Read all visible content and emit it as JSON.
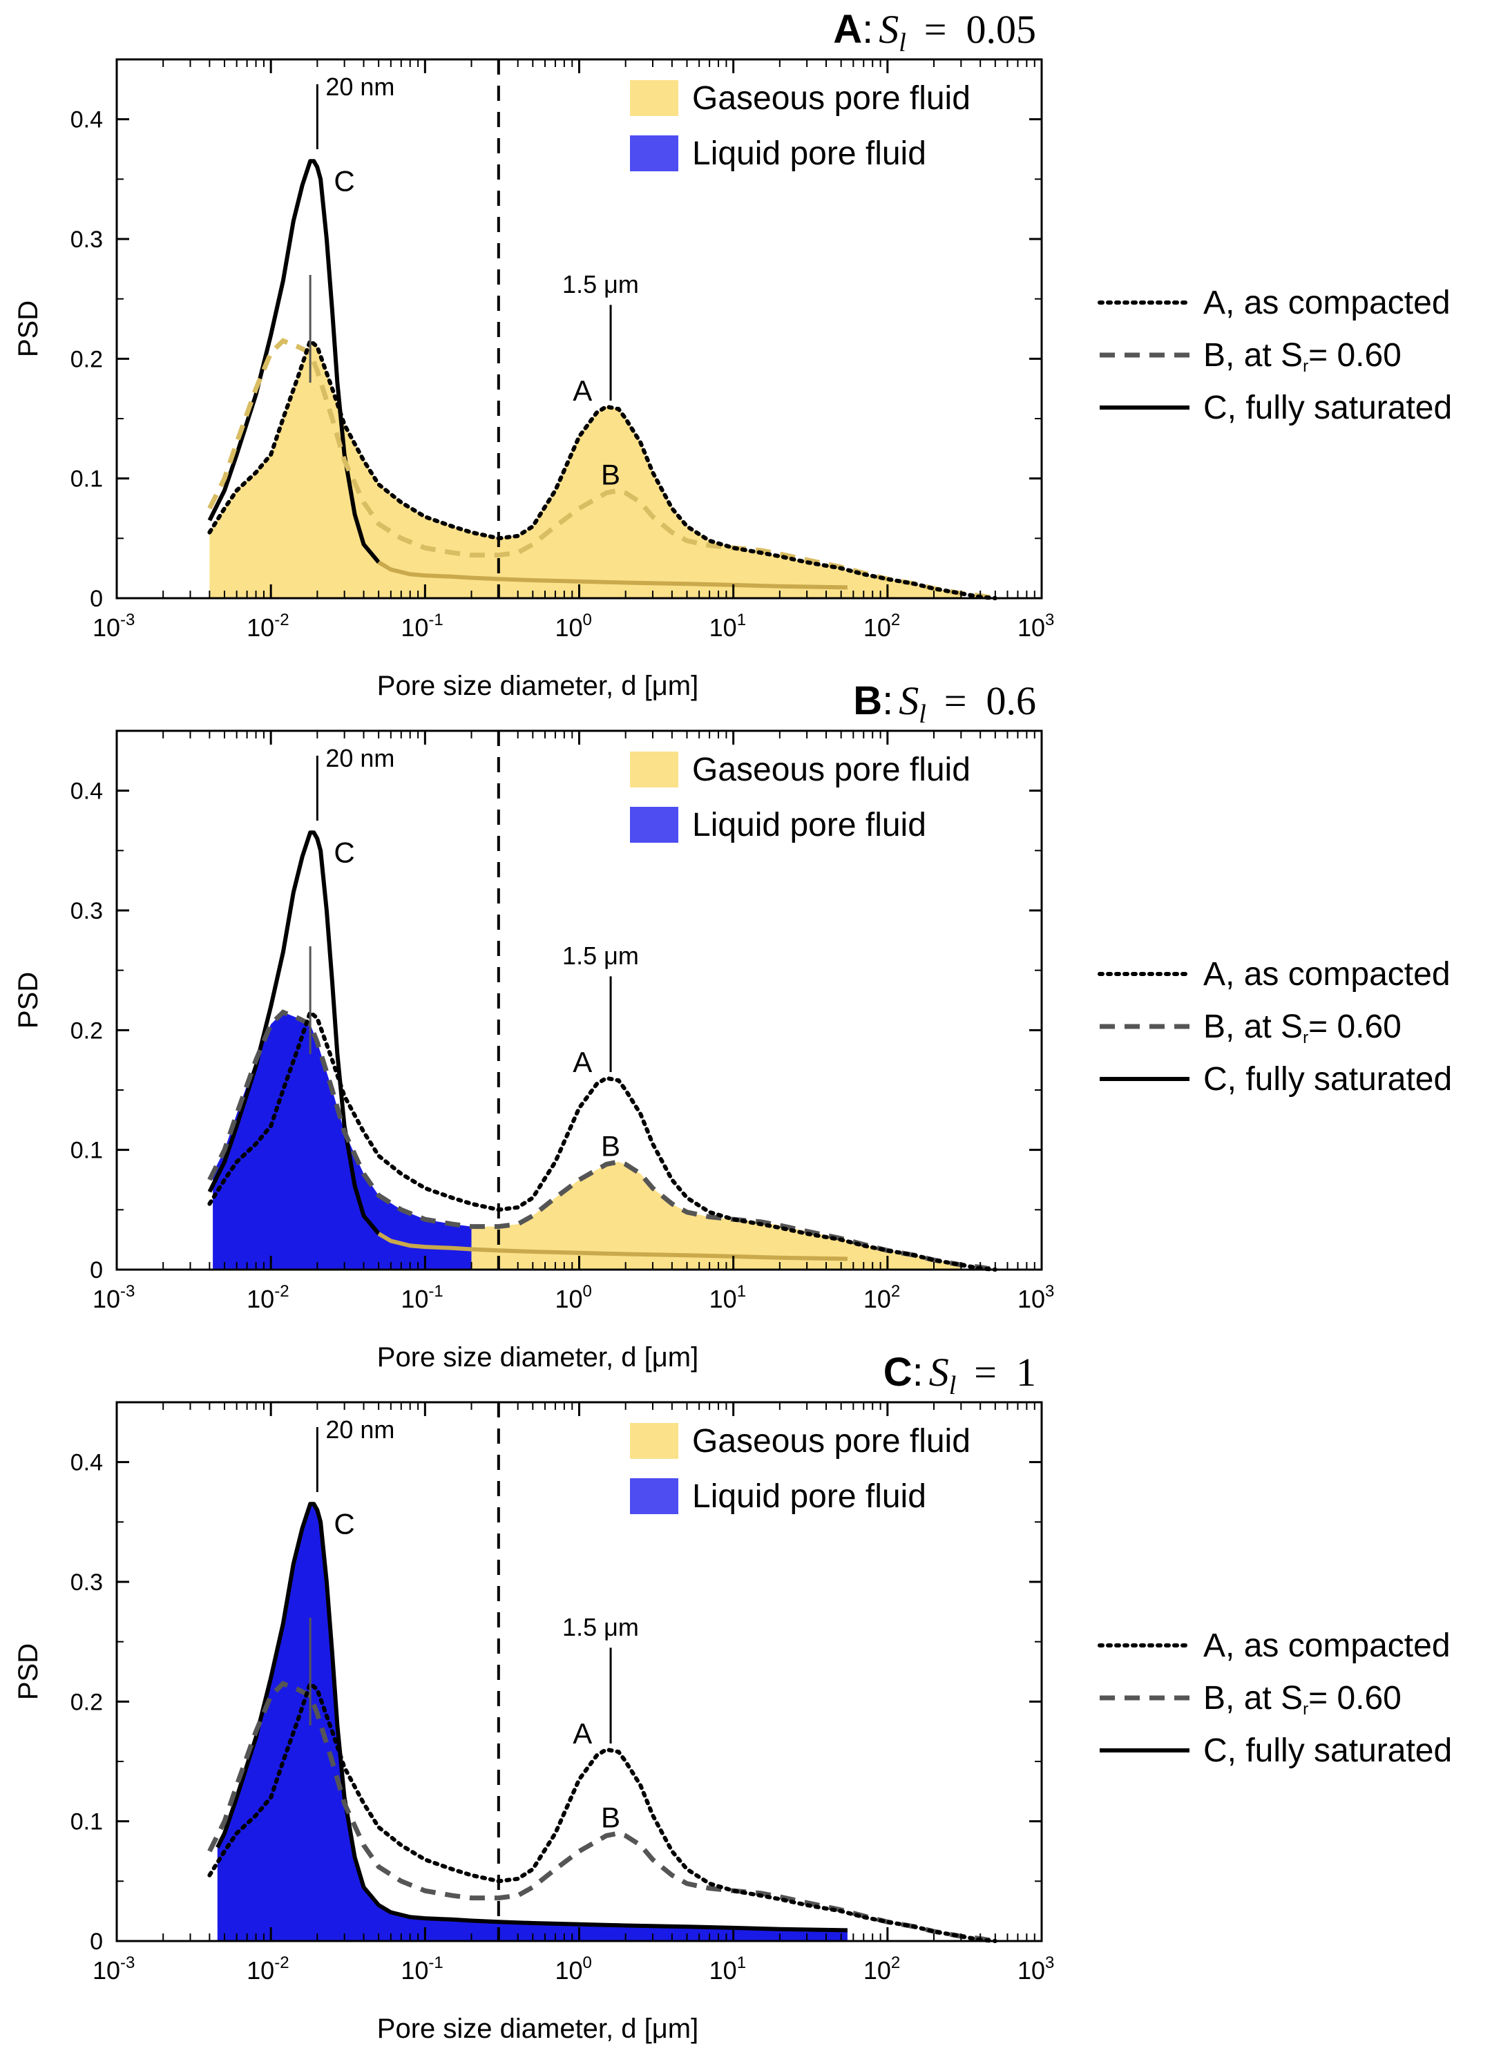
{
  "colors": {
    "gaseous": "#fbe18a",
    "gaseous_edge": "#d9b24a",
    "liquid": "#1a1ae6",
    "legend_liquid": "#4d4df2",
    "curve_a": "#000000",
    "curve_b": "#555555",
    "curve_c": "#000000",
    "curve_c_muted": "#c9a94c",
    "divider": "#000000"
  },
  "shared": {
    "xlabel": "Pore size diameter, d [μm]",
    "ylabel": "PSD",
    "xlim": [
      0.001,
      1000
    ],
    "ylim": [
      0,
      0.45
    ],
    "x_scale": "log",
    "yticks": [
      0,
      0.1,
      0.2,
      0.3,
      0.4
    ],
    "ytick_labels": [
      "0",
      "0.1",
      "0.2",
      "0.3",
      "0.4"
    ],
    "xtick_base": "10",
    "xtick_exponents": [
      "-3",
      "-2",
      "-1",
      "0",
      "1",
      "2",
      "3"
    ],
    "legend_fill": [
      "Gaseous pore fluid",
      "Liquid pore fluid"
    ],
    "legend_lines": [
      "A, as compacted",
      "B, at S",
      "r",
      "= 0.60",
      "C, fully saturated"
    ],
    "annotations": {
      "peak_small": "20 nm",
      "peak_large": "1.5 μm",
      "label_a": "A",
      "label_b": "B",
      "label_c": "C"
    },
    "divider_x": 0.3
  },
  "panels": [
    {
      "title_bold": "A",
      "title_sep": ":",
      "title_var": "S",
      "title_sub": "l",
      "title_eq": "=",
      "title_val": "0.05"
    },
    {
      "title_bold": "B",
      "title_sep": ":",
      "title_var": "S",
      "title_sub": "l",
      "title_eq": "=",
      "title_val": "0.6"
    },
    {
      "title_bold": "C",
      "title_sep": ":",
      "title_var": "S",
      "title_sub": "l",
      "title_eq": "=",
      "title_val": "1"
    }
  ],
  "chart_data": {
    "type": "line",
    "x_scale": "log",
    "xlim": [
      0.001,
      1000
    ],
    "ylim": [
      0,
      0.45
    ],
    "xlabel": "Pore size diameter, d [μm]",
    "ylabel": "PSD",
    "series": [
      {
        "name": "A, as compacted",
        "style": "dotted",
        "x": [
          0.004,
          0.005,
          0.006,
          0.008,
          0.01,
          0.012,
          0.015,
          0.018,
          0.02,
          0.025,
          0.03,
          0.04,
          0.05,
          0.07,
          0.1,
          0.15,
          0.2,
          0.3,
          0.4,
          0.5,
          0.7,
          1.0,
          1.3,
          1.5,
          1.8,
          2.0,
          2.5,
          3.0,
          4.0,
          5.0,
          7.0,
          10,
          15,
          20,
          30,
          50,
          70,
          100,
          150,
          200,
          300,
          400,
          500
        ],
        "y": [
          0.055,
          0.075,
          0.09,
          0.105,
          0.12,
          0.15,
          0.185,
          0.215,
          0.21,
          0.175,
          0.145,
          0.115,
          0.095,
          0.08,
          0.068,
          0.06,
          0.055,
          0.05,
          0.052,
          0.06,
          0.09,
          0.135,
          0.155,
          0.16,
          0.158,
          0.15,
          0.13,
          0.105,
          0.075,
          0.06,
          0.048,
          0.042,
          0.038,
          0.035,
          0.03,
          0.025,
          0.02,
          0.016,
          0.012,
          0.008,
          0.004,
          0.001,
          0.0
        ]
      },
      {
        "name": "B, at Sr = 0.60",
        "style": "dashed",
        "x": [
          0.004,
          0.005,
          0.006,
          0.008,
          0.01,
          0.012,
          0.015,
          0.018,
          0.02,
          0.025,
          0.03,
          0.04,
          0.05,
          0.07,
          0.1,
          0.15,
          0.2,
          0.3,
          0.4,
          0.5,
          0.7,
          1.0,
          1.5,
          1.8,
          2.0,
          2.5,
          3.0,
          4.0,
          5.0,
          7.0,
          10,
          15,
          20,
          30,
          50,
          70,
          100,
          150,
          200,
          300,
          400,
          500
        ],
        "y": [
          0.075,
          0.1,
          0.13,
          0.175,
          0.205,
          0.215,
          0.21,
          0.205,
          0.19,
          0.15,
          0.115,
          0.08,
          0.062,
          0.05,
          0.042,
          0.038,
          0.036,
          0.036,
          0.038,
          0.045,
          0.06,
          0.075,
          0.088,
          0.09,
          0.088,
          0.08,
          0.068,
          0.055,
          0.048,
          0.044,
          0.042,
          0.04,
          0.037,
          0.032,
          0.026,
          0.021,
          0.016,
          0.012,
          0.008,
          0.004,
          0.002,
          0.0
        ]
      },
      {
        "name": "C, fully saturated",
        "style": "solid",
        "x": [
          0.004,
          0.005,
          0.006,
          0.008,
          0.01,
          0.012,
          0.014,
          0.016,
          0.018,
          0.019,
          0.02,
          0.021,
          0.023,
          0.025,
          0.027,
          0.03,
          0.035,
          0.04,
          0.05,
          0.06,
          0.08,
          0.1,
          0.15,
          0.2,
          0.3,
          0.5,
          1.0,
          2.0,
          5.0,
          10,
          20,
          55
        ],
        "y": [
          0.065,
          0.09,
          0.12,
          0.17,
          0.22,
          0.265,
          0.315,
          0.345,
          0.365,
          0.365,
          0.36,
          0.35,
          0.3,
          0.24,
          0.18,
          0.12,
          0.07,
          0.045,
          0.03,
          0.024,
          0.02,
          0.019,
          0.018,
          0.017,
          0.016,
          0.015,
          0.014,
          0.013,
          0.012,
          0.011,
          0.01,
          0.009
        ]
      }
    ],
    "panels": [
      {
        "title": "A: Sl = 0.05",
        "gaseous_pore_fluid": "series A, d >= 0.004 μm",
        "liquid_pore_fluid": "none visible"
      },
      {
        "title": "B: Sl = 0.6",
        "liquid_pore_fluid": "under series B for d <= 0.2 μm",
        "gaseous_pore_fluid": "under series B for d > 0.2 μm"
      },
      {
        "title": "C: Sl = 1",
        "liquid_pore_fluid": "under series C",
        "gaseous_pore_fluid": "none visible"
      }
    ],
    "annotations": [
      "20 nm",
      "1.5 μm",
      "A",
      "B",
      "C"
    ],
    "reference_line_x": 0.3
  }
}
